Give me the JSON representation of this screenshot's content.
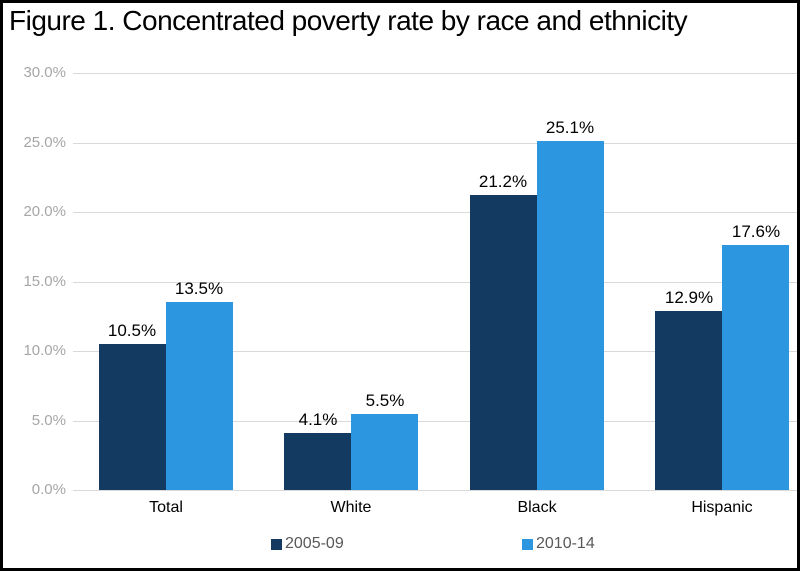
{
  "chart_data": {
    "type": "bar",
    "title": "Figure 1. Concentrated poverty rate by race and ethnicity",
    "categories": [
      "Total",
      "White",
      "Black",
      "Hispanic"
    ],
    "series": [
      {
        "name": "2005-09",
        "color": "#133A61",
        "values": [
          10.5,
          4.1,
          21.2,
          12.9
        ],
        "value_labels": [
          "10.5%",
          "4.1%",
          "21.2%",
          "12.9%"
        ]
      },
      {
        "name": "2010-14",
        "color": "#2D96E1",
        "values": [
          13.5,
          5.5,
          25.1,
          17.6
        ],
        "value_labels": [
          "13.5%",
          "5.5%",
          "25.1%",
          "17.6%"
        ]
      }
    ],
    "xlabel": "",
    "ylabel": "",
    "ylim": [
      0,
      30
    ],
    "ytick_step": 5,
    "ytick_labels": [
      "0.0%",
      "5.0%",
      "10.0%",
      "15.0%",
      "20.0%",
      "25.0%",
      "30.0%"
    ],
    "grid": true,
    "legend_position": "bottom",
    "colors": {
      "gridline": "#D9D9D9",
      "axis_tick_text": "#A6A6A6",
      "data_label_text": "#000000",
      "category_text": "#000000",
      "legend_text": "#595959",
      "figure_border": "#000000",
      "background": "#FFFFFF"
    }
  }
}
